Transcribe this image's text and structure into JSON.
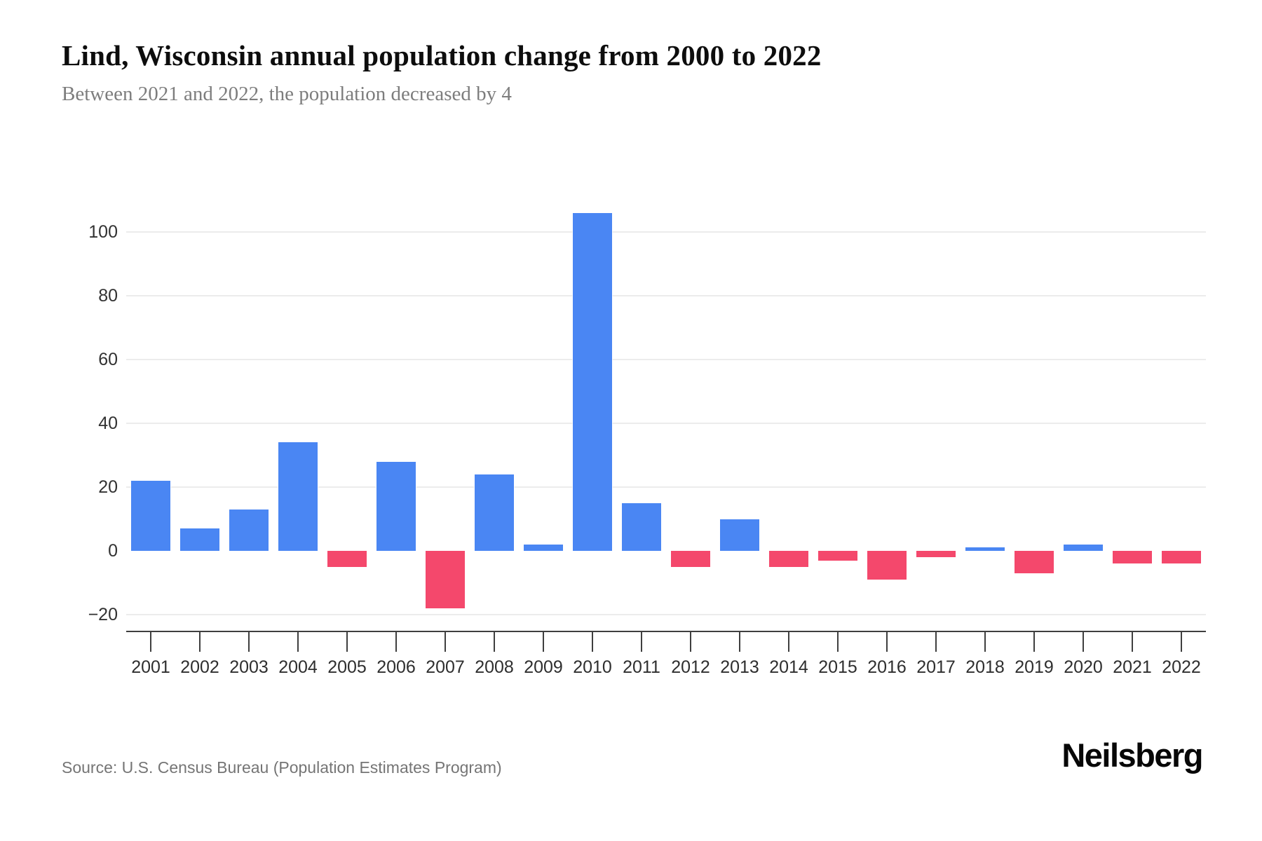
{
  "header": {
    "title": "Lind, Wisconsin annual population change from 2000 to 2022",
    "subtitle": "Between 2021 and 2022, the population decreased by 4"
  },
  "footer": {
    "source": "Source: U.S. Census Bureau (Population Estimates Program)",
    "brand": "Neilsberg"
  },
  "chart_data": {
    "type": "bar",
    "title": "Lind, Wisconsin annual population change from 2000 to 2022",
    "subtitle": "Between 2021 and 2022, the population decreased by 4",
    "categories": [
      "2001",
      "2002",
      "2003",
      "2004",
      "2005",
      "2006",
      "2007",
      "2008",
      "2009",
      "2010",
      "2011",
      "2012",
      "2013",
      "2014",
      "2015",
      "2016",
      "2017",
      "2018",
      "2019",
      "2020",
      "2021",
      "2022"
    ],
    "values": [
      22,
      7,
      13,
      34,
      -5,
      28,
      -18,
      24,
      2,
      106,
      15,
      -5,
      10,
      -5,
      -3,
      -9,
      -2,
      1,
      -7,
      2,
      -4,
      -4
    ],
    "xlabel": "",
    "ylabel": "",
    "yticks": [
      100,
      80,
      60,
      40,
      20,
      0,
      -20
    ],
    "ylim": [
      -25,
      112
    ],
    "grid": "horizontal",
    "legend": "none",
    "colors": {
      "positive": "#4a86f3",
      "negative": "#f4486c",
      "gridline": "#ececec",
      "axis": "#3f3f3f",
      "tick_label": "#2e2e2e"
    }
  }
}
